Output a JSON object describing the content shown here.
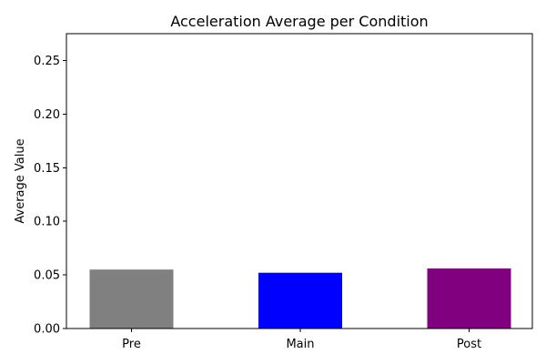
{
  "chart_data": {
    "type": "bar",
    "title": "Acceleration Average per Condition",
    "xlabel": "",
    "ylabel": "Average Value",
    "categories": [
      "Pre",
      "Main",
      "Post"
    ],
    "values": [
      0.055,
      0.052,
      0.056
    ],
    "colors": [
      "#808080",
      "#0000ff",
      "#800080"
    ],
    "ylim": [
      0,
      0.275
    ],
    "yticks": [
      0.0,
      0.05,
      0.1,
      0.15,
      0.2,
      0.25
    ],
    "ytick_labels": [
      "0.00",
      "0.05",
      "0.10",
      "0.15",
      "0.20",
      "0.25"
    ],
    "grid": false,
    "legend": "none"
  }
}
